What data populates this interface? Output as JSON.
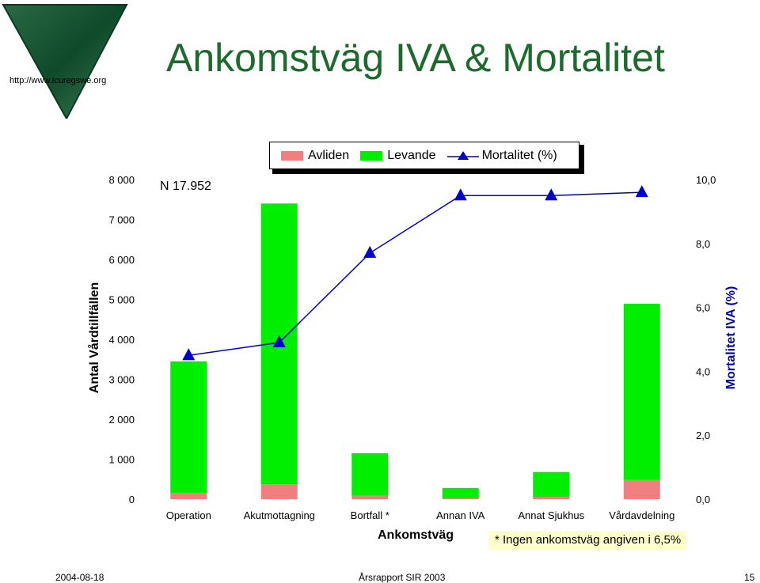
{
  "header": {
    "title": "Ankomstväg IVA & Mortalitet",
    "logo_url": "http://www.icuregswe.org"
  },
  "annotation": {
    "n_text": "N  17.952"
  },
  "footnote": "*  Ingen ankomstväg angiven i 6,5%",
  "footer": {
    "date": "2004-08-18",
    "report": "Årsrapport SIR 2003",
    "page": "15"
  },
  "colors": {
    "avliden": "#f08080",
    "levande": "#00ee00",
    "mortalitet": "#0000cc",
    "title": "#1d6b2c"
  },
  "chart_data": {
    "type": "bar",
    "stacked": true,
    "xlabel": "Ankomstväg",
    "ylabel": "Antal Vårdtillfällen",
    "y2label": "Mortalitet IVA (%)",
    "categories": [
      "Operation",
      "Akutmottagning",
      "Bortfall *",
      "Annan IVA",
      "Annat Sjukhus",
      "Vårdavdelning"
    ],
    "ylim": [
      0,
      8000
    ],
    "yticks": [
      "0",
      "1 000",
      "2 000",
      "3 000",
      "4 000",
      "5 000",
      "6 000",
      "7 000",
      "8 000"
    ],
    "y2lim": [
      0,
      10
    ],
    "y2ticks": [
      "0,0",
      "2,0",
      "4,0",
      "6,0",
      "8,0",
      "10,0"
    ],
    "legend": [
      "Avliden",
      "Levande",
      "Mortalitet (%)"
    ],
    "legend_position": "top",
    "grid": false,
    "series": [
      {
        "name": "Avliden",
        "values": [
          160,
          370,
          90,
          30,
          60,
          480
        ]
      },
      {
        "name": "Levande",
        "values": [
          3290,
          7030,
          1060,
          250,
          620,
          4410
        ]
      },
      {
        "name": "Mortalitet (%)",
        "type": "line",
        "axis": "right",
        "values": [
          4.5,
          4.9,
          7.7,
          9.5,
          9.5,
          9.6
        ]
      }
    ]
  }
}
